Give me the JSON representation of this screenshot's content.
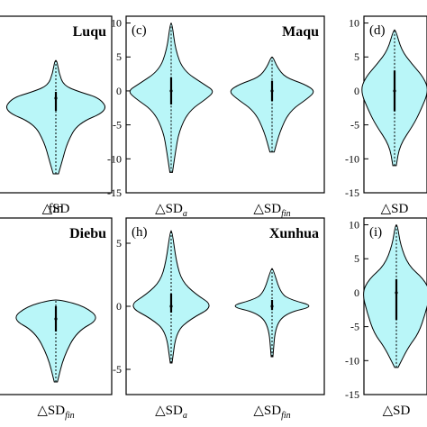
{
  "colors": {
    "violin_fill": "#b9f6f8",
    "frame": "#000000"
  },
  "chart_data": [
    {
      "type": "violin",
      "panel_label": "",
      "station": "Luqu",
      "ylim": [
        -15,
        13
      ],
      "yticks": [],
      "categories": [
        "△SD",
        "fin"
      ],
      "series": [
        {
          "center": 0,
          "min": -12,
          "max": 6,
          "q1": -2,
          "median": 0,
          "q3": 1,
          "profile": [
            [
              -12,
              0.05
            ],
            [
              -10,
              0.12
            ],
            [
              -7,
              0.22
            ],
            [
              -4,
              0.42
            ],
            [
              -2,
              1.0
            ],
            [
              0,
              0.85
            ],
            [
              1,
              0.45
            ],
            [
              2,
              0.15
            ],
            [
              4,
              0.06
            ],
            [
              6,
              0.02
            ]
          ]
        }
      ]
    },
    {
      "type": "violin",
      "panel_label": "(c)",
      "station": "Maqu",
      "ylim": [
        -15,
        11
      ],
      "yticks": [
        10,
        5,
        0,
        -5,
        -10,
        -15
      ],
      "categories": [
        [
          "△SD",
          "a"
        ],
        [
          "△SD",
          "fin"
        ]
      ],
      "series": [
        {
          "center": 0,
          "min": -12,
          "max": 10,
          "q1": -2,
          "median": 0,
          "q3": 2,
          "profile": [
            [
              -12,
              0.03
            ],
            [
              -9,
              0.1
            ],
            [
              -6,
              0.18
            ],
            [
              -3,
              0.4
            ],
            [
              -1,
              0.85
            ],
            [
              0,
              1.0
            ],
            [
              1,
              0.75
            ],
            [
              3,
              0.28
            ],
            [
              6,
              0.1
            ],
            [
              10,
              0.02
            ]
          ]
        },
        {
          "center": 0,
          "min": -9,
          "max": 5,
          "q1": -1.5,
          "median": 0,
          "q3": 1.5,
          "profile": [
            [
              -9,
              0.05
            ],
            [
              -6,
              0.18
            ],
            [
              -3,
              0.4
            ],
            [
              -1,
              0.85
            ],
            [
              0,
              1.0
            ],
            [
              1,
              0.75
            ],
            [
              2,
              0.3
            ],
            [
              3.5,
              0.12
            ],
            [
              5,
              0.02
            ]
          ]
        }
      ]
    },
    {
      "type": "violin",
      "panel_label": "(d)",
      "station": "",
      "ylim": [
        -15,
        11
      ],
      "yticks": [
        10,
        5,
        0,
        -5,
        -10,
        -15
      ],
      "categories": [
        "△SD"
      ],
      "series": [
        {
          "center": 0,
          "min": -11,
          "max": 9,
          "q1": -3,
          "median": 0,
          "q3": 3,
          "profile": [
            [
              -11,
              0.05
            ],
            [
              -8,
              0.15
            ],
            [
              -5,
              0.55
            ],
            [
              -3,
              0.75
            ],
            [
              0,
              1.0
            ],
            [
              2,
              0.85
            ],
            [
              4,
              0.5
            ],
            [
              6,
              0.2
            ],
            [
              9,
              0.03
            ]
          ]
        }
      ]
    },
    {
      "type": "violin",
      "panel_label": "",
      "station": "Diebu",
      "ylim": [
        -7,
        7
      ],
      "yticks": [],
      "categories": [
        [
          "△SD",
          "fin"
        ]
      ],
      "series": [
        {
          "center": 0,
          "min": -6,
          "max": 0.5,
          "q1": -2,
          "median": -1,
          "q3": 0,
          "profile": [
            [
              -6,
              0.03
            ],
            [
              -4,
              0.15
            ],
            [
              -2,
              0.4
            ],
            [
              -1,
              0.85
            ],
            [
              0,
              0.55
            ],
            [
              0.5,
              0.1
            ]
          ]
        }
      ]
    },
    {
      "type": "violin",
      "panel_label": "(h)",
      "station": "Xunhua",
      "ylim": [
        -7,
        7
      ],
      "yticks": [
        5,
        0,
        -5
      ],
      "categories": [
        [
          "△SD",
          "a"
        ],
        [
          "△SD",
          "fin"
        ]
      ],
      "series": [
        {
          "center": 0,
          "min": -4.5,
          "max": 6,
          "q1": -0.5,
          "median": 0,
          "q3": 1,
          "profile": [
            [
              -4.5,
              0.02
            ],
            [
              -2,
              0.12
            ],
            [
              -1,
              0.45
            ],
            [
              0,
              1.0
            ],
            [
              1,
              0.55
            ],
            [
              2,
              0.25
            ],
            [
              3.5,
              0.12
            ],
            [
              6,
              0.02
            ]
          ]
        },
        {
          "center": 0,
          "min": -4,
          "max": 3,
          "q1": -0.3,
          "median": 0,
          "q3": 0.5,
          "profile": [
            [
              -4,
              0.02
            ],
            [
              -1.5,
              0.08
            ],
            [
              -0.5,
              0.35
            ],
            [
              0,
              1.0
            ],
            [
              0.5,
              0.45
            ],
            [
              1,
              0.2
            ],
            [
              3,
              0.02
            ]
          ]
        }
      ]
    },
    {
      "type": "violin",
      "panel_label": "(i)",
      "station": "",
      "ylim": [
        -15,
        11
      ],
      "yticks": [
        10,
        5,
        0,
        -5,
        -10,
        -15
      ],
      "categories": [
        "△SD"
      ],
      "series": [
        {
          "center": 0,
          "min": -11,
          "max": 10,
          "q1": -4,
          "median": 0,
          "q3": 2,
          "profile": [
            [
              -11,
              0.05
            ],
            [
              -8,
              0.35
            ],
            [
              -6,
              0.65
            ],
            [
              -3,
              0.85
            ],
            [
              0,
              1.0
            ],
            [
              2,
              0.8
            ],
            [
              4,
              0.35
            ],
            [
              7,
              0.12
            ],
            [
              10,
              0.03
            ]
          ]
        }
      ]
    }
  ]
}
